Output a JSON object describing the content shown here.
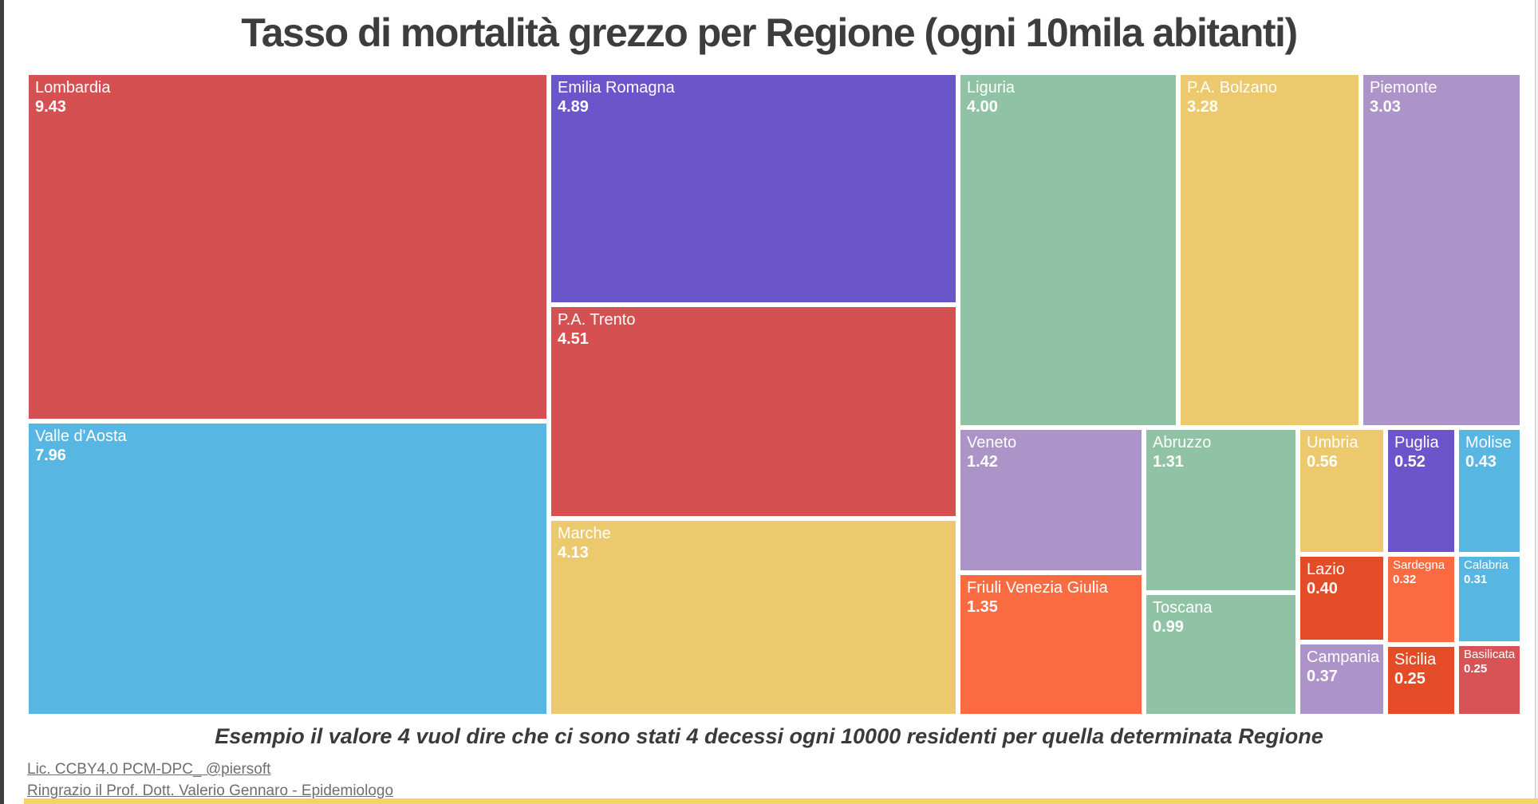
{
  "title": "Tasso di mortalità grezzo per Regione (ogni 10mila abitanti)",
  "caption": "Esempio il valore 4 vuol dire che ci sono stati 4 decessi ogni 10000 residenti per quella determinata Regione",
  "footer": {
    "license_link": "Lic. CCBY4.0 PCM-DPC_ @piersoft",
    "credits_link": "Ringrazio il Prof. Dott. Valerio Gennaro - Epidemiologo"
  },
  "accent_bar_color": "#f5d26b",
  "chart_data": {
    "type": "treemap",
    "title": "Tasso di mortalità grezzo per Regione (ogni 10mila abitanti)",
    "unit": "decessi ogni 10000 residenti",
    "value_decimals": 2,
    "items": [
      {
        "name": "Lombardia",
        "value": 9.43,
        "color": "#d55050"
      },
      {
        "name": "Valle d'Aosta",
        "value": 7.96,
        "color": "#58b6e2"
      },
      {
        "name": "Emilia Romagna",
        "value": 4.89,
        "color": "#6a55cb"
      },
      {
        "name": "P.A. Trento",
        "value": 4.51,
        "color": "#d55050"
      },
      {
        "name": "Marche",
        "value": 4.13,
        "color": "#edc96e"
      },
      {
        "name": "Liguria",
        "value": 4.0,
        "color": "#90c3a6"
      },
      {
        "name": "P.A. Bolzano",
        "value": 3.28,
        "color": "#edc96e"
      },
      {
        "name": "Piemonte",
        "value": 3.03,
        "color": "#ad94c8"
      },
      {
        "name": "Veneto",
        "value": 1.42,
        "color": "#ad94c8"
      },
      {
        "name": "Friuli Venezia Giulia",
        "value": 1.35,
        "color": "#fb6b42"
      },
      {
        "name": "Abruzzo",
        "value": 1.31,
        "color": "#90c3a6"
      },
      {
        "name": "Toscana",
        "value": 0.99,
        "color": "#90c3a6"
      },
      {
        "name": "Umbria",
        "value": 0.56,
        "color": "#edc96e"
      },
      {
        "name": "Puglia",
        "value": 0.52,
        "color": "#6a55cb"
      },
      {
        "name": "Molise",
        "value": 0.43,
        "color": "#58b6e2"
      },
      {
        "name": "Lazio",
        "value": 0.4,
        "color": "#e44c27"
      },
      {
        "name": "Campania",
        "value": 0.37,
        "color": "#ad94c8"
      },
      {
        "name": "Sardegna",
        "value": 0.32,
        "color": "#fb6b42"
      },
      {
        "name": "Calabria",
        "value": 0.31,
        "color": "#58b6e2"
      },
      {
        "name": "Sicilia",
        "value": 0.25,
        "color": "#e44c27"
      },
      {
        "name": "Basilicata",
        "value": 0.25,
        "color": "#d75456"
      }
    ]
  }
}
